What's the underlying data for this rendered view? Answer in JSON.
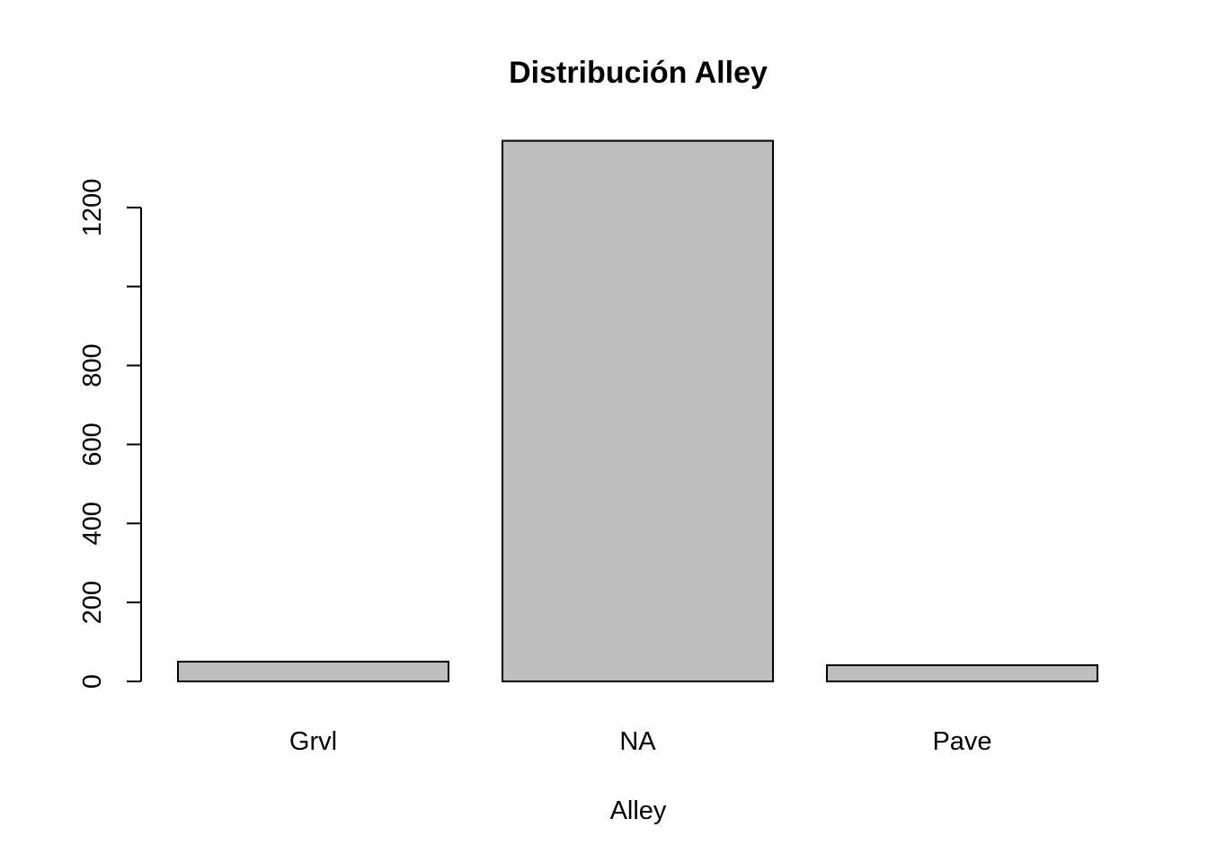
{
  "chart_data": {
    "type": "bar",
    "title": "Distribución Alley",
    "xlabel": "Alley",
    "ylabel": "",
    "categories": [
      "Grvl",
      "NA",
      "Pave"
    ],
    "values": [
      50,
      1369,
      41
    ],
    "ylim": [
      0,
      1369
    ],
    "yticks": [
      0,
      200,
      400,
      600,
      800,
      1000,
      1200
    ],
    "ytick_labels": [
      "0",
      "200",
      "400",
      "600",
      "800",
      "",
      "1200"
    ],
    "bar_color": "#bebebe",
    "grid": false,
    "legend": "none"
  }
}
